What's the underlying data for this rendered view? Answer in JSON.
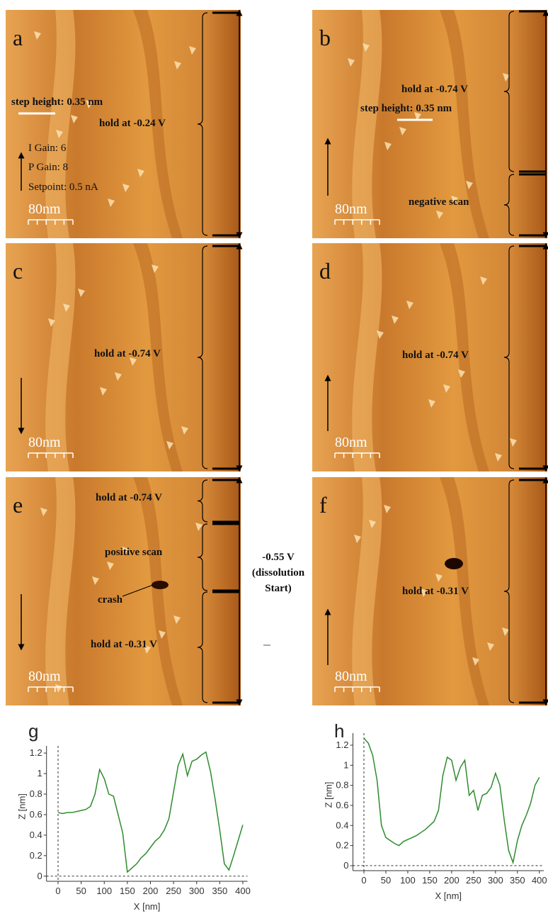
{
  "panels": [
    {
      "label": "a",
      "scale_bar": "80nm",
      "annotations": [
        "step height: 0.35 nm",
        "hold at -0.24 V",
        "I Gain: 6",
        "P Gain: 8",
        "Setpoint: 0.5 nA"
      ]
    },
    {
      "label": "b",
      "scale_bar": "80nm",
      "annotations": [
        "hold at -0.74 V",
        "step height: 0.35 nm",
        "negative scan"
      ]
    },
    {
      "label": "c",
      "scale_bar": "80nm",
      "annotations": [
        "hold at -0.74 V"
      ]
    },
    {
      "label": "d",
      "scale_bar": "80nm",
      "annotations": [
        "hold at -0.74 V"
      ]
    },
    {
      "label": "e",
      "scale_bar": "80nm",
      "annotations": [
        "hold at -0.74 V",
        "positive scan",
        "crash",
        "hold at -0.31 V"
      ]
    },
    {
      "label": "f",
      "scale_bar": "80nm",
      "annotations": [
        "hold at -0.31 V"
      ]
    }
  ],
  "middle_annotation": [
    "-0.55 V",
    "(dissolution",
    "Start)"
  ],
  "chart_data": [
    {
      "type": "line",
      "label": "g",
      "x_label": "X [nm]",
      "y_label": "Z [nm]",
      "x": [
        0,
        10,
        20,
        30,
        40,
        50,
        60,
        70,
        80,
        90,
        100,
        110,
        120,
        130,
        140,
        150,
        160,
        170,
        180,
        190,
        200,
        210,
        220,
        230,
        240,
        250,
        260,
        270,
        280,
        290,
        300,
        310,
        320,
        330,
        340,
        350,
        360,
        370,
        380,
        390,
        400
      ],
      "series": [
        {
          "color": "#2e8b2e",
          "values": [
            0.62,
            0.61,
            0.62,
            0.62,
            0.63,
            0.64,
            0.65,
            0.68,
            0.8,
            1.04,
            0.95,
            0.8,
            0.78,
            0.6,
            0.42,
            0.04,
            0.08,
            0.12,
            0.18,
            0.22,
            0.28,
            0.34,
            0.38,
            0.45,
            0.56,
            0.82,
            1.08,
            1.19,
            0.98,
            1.12,
            1.14,
            1.18,
            1.21,
            1.02,
            0.75,
            0.45,
            0.12,
            0.06,
            0.2,
            0.35,
            0.5
          ]
        }
      ],
      "xlim": [
        -25,
        410
      ],
      "ylim": [
        -0.05,
        1.27
      ],
      "xticks": [
        0,
        50,
        100,
        150,
        200,
        250,
        300,
        350,
        400
      ],
      "yticks": [
        0,
        0.2,
        0.4,
        0.6,
        0.8,
        1,
        1.2
      ]
    },
    {
      "type": "line",
      "label": "h",
      "x_label": "X [nm]",
      "y_label": "Z [nm]",
      "x": [
        0,
        10,
        20,
        30,
        40,
        50,
        60,
        70,
        80,
        90,
        100,
        110,
        120,
        130,
        140,
        150,
        160,
        170,
        180,
        190,
        200,
        210,
        220,
        230,
        240,
        250,
        260,
        270,
        280,
        290,
        300,
        310,
        320,
        330,
        340,
        350,
        360,
        370,
        380,
        390,
        400
      ],
      "series": [
        {
          "color": "#2e8b2e",
          "values": [
            1.27,
            1.22,
            1.1,
            0.85,
            0.4,
            0.28,
            0.25,
            0.22,
            0.2,
            0.24,
            0.26,
            0.28,
            0.3,
            0.33,
            0.36,
            0.4,
            0.44,
            0.55,
            0.9,
            1.08,
            1.05,
            0.85,
            0.98,
            1.05,
            0.7,
            0.75,
            0.55,
            0.7,
            0.72,
            0.78,
            0.92,
            0.8,
            0.45,
            0.15,
            0.03,
            0.25,
            0.4,
            0.5,
            0.62,
            0.8,
            0.88
          ]
        }
      ],
      "xlim": [
        -25,
        410
      ],
      "ylim": [
        -0.05,
        1.32
      ],
      "xticks": [
        0,
        50,
        100,
        150,
        200,
        250,
        300,
        350,
        400
      ],
      "yticks": [
        0,
        0.2,
        0.4,
        0.6,
        0.8,
        1,
        1.2
      ]
    }
  ]
}
